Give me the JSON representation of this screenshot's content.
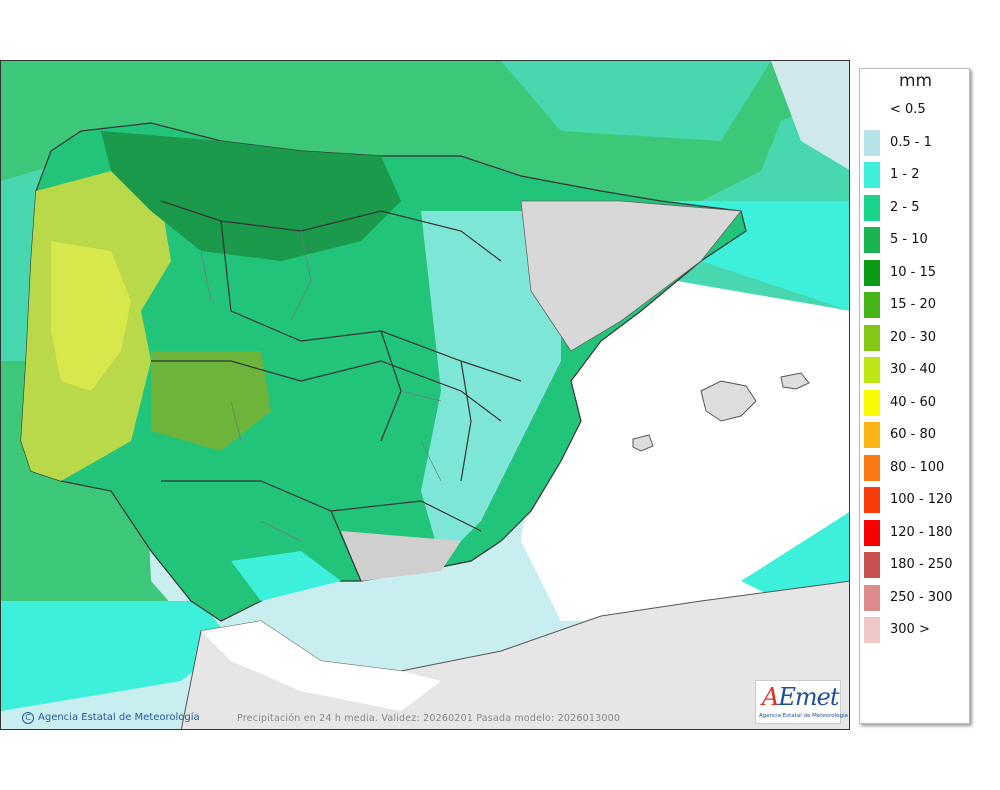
{
  "map": {
    "caption": "Precipitación en 24 h media. Validez: 20260201 Pasada modelo: 2026013000",
    "credit": "Agencia Estatal de Meteorología",
    "credit_symbol": "C",
    "logo_word_a": "A",
    "logo_word_rest": "Emet",
    "logo_sub": "Agencia Estatal de Meteorología"
  },
  "legend": {
    "unit": "mm",
    "items": [
      {
        "label": "< 0.5",
        "color": "#ffffff"
      },
      {
        "label": "0.5 - 1",
        "color": "#b4e2e8"
      },
      {
        "label": "1 - 2",
        "color": "#3cf0dc"
      },
      {
        "label": "2 - 5",
        "color": "#1ad48c"
      },
      {
        "label": "5 - 10",
        "color": "#1ab450"
      },
      {
        "label": "10 - 15",
        "color": "#0a9a14"
      },
      {
        "label": "15 - 20",
        "color": "#46b414"
      },
      {
        "label": "20 - 30",
        "color": "#82c814"
      },
      {
        "label": "30 - 40",
        "color": "#bee614"
      },
      {
        "label": "40 - 60",
        "color": "#fafa00"
      },
      {
        "label": "60 - 80",
        "color": "#fab414"
      },
      {
        "label": "80 - 100",
        "color": "#fa7814"
      },
      {
        "label": "100 - 120",
        "color": "#fa3c0a"
      },
      {
        "label": "120 - 180",
        "color": "#fa0000"
      },
      {
        "label": "180 - 250",
        "color": "#c85050"
      },
      {
        "label": "250 - 300",
        "color": "#dc8c8c"
      },
      {
        "label": "300 >",
        "color": "#f0c8c8"
      }
    ]
  }
}
